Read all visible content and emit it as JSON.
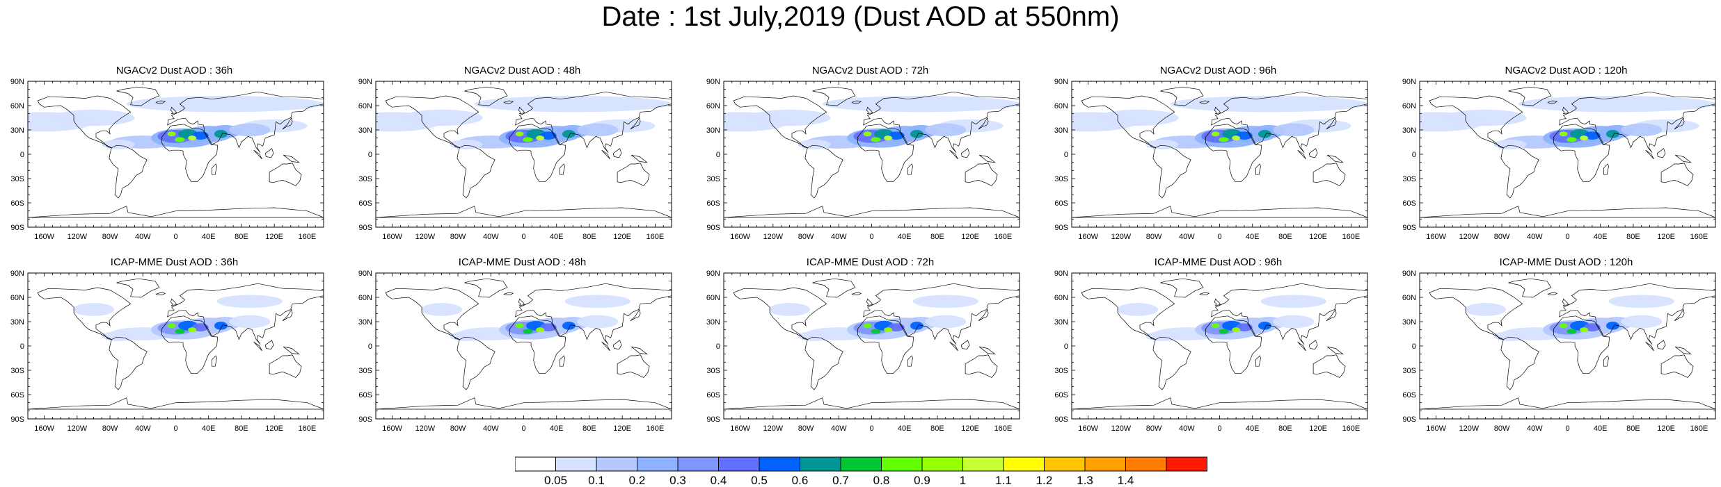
{
  "title": "Date : 1st July,2019 (Dust AOD at 550nm)",
  "map": {
    "lat_labels": [
      "90N",
      "60N",
      "30N",
      "0",
      "30S",
      "60S",
      "90S"
    ],
    "lon_labels": [
      "160W",
      "120W",
      "80W",
      "40W",
      "0",
      "40E",
      "80E",
      "120E",
      "160E"
    ],
    "panels": [
      {
        "title": "NGACv2 Dust AOD : 36h",
        "model": "NGACv2",
        "lead": "36h"
      },
      {
        "title": "NGACv2 Dust AOD : 48h",
        "model": "NGACv2",
        "lead": "48h"
      },
      {
        "title": "NGACv2 Dust AOD : 72h",
        "model": "NGACv2",
        "lead": "72h"
      },
      {
        "title": "NGACv2 Dust AOD : 96h",
        "model": "NGACv2",
        "lead": "96h"
      },
      {
        "title": "NGACv2 Dust AOD : 120h",
        "model": "NGACv2",
        "lead": "120h"
      },
      {
        "title": "ICAP-MME Dust AOD : 36h",
        "model": "ICAP-MME",
        "lead": "36h"
      },
      {
        "title": "ICAP-MME Dust AOD : 48h",
        "model": "ICAP-MME",
        "lead": "48h"
      },
      {
        "title": "ICAP-MME Dust AOD : 72h",
        "model": "ICAP-MME",
        "lead": "72h"
      },
      {
        "title": "ICAP-MME Dust AOD : 96h",
        "model": "ICAP-MME",
        "lead": "96h"
      },
      {
        "title": "ICAP-MME Dust AOD : 120h",
        "model": "ICAP-MME",
        "lead": "120h"
      }
    ]
  },
  "colorbar": {
    "levels": [
      "0.05",
      "0.1",
      "0.2",
      "0.3",
      "0.4",
      "0.5",
      "0.6",
      "0.7",
      "0.8",
      "0.9",
      "1",
      "1.1",
      "1.2",
      "1.3",
      "1.4"
    ],
    "colors": [
      "#ffffff",
      "#d6e2ff",
      "#b5c9ff",
      "#8eb2ff",
      "#7f96ff",
      "#6370ff",
      "#0063ff",
      "#009696",
      "#00c633",
      "#63ff00",
      "#96ff00",
      "#c6ff33",
      "#ffff00",
      "#ffc600",
      "#ffa000",
      "#ff7c00",
      "#ff1900"
    ]
  }
}
